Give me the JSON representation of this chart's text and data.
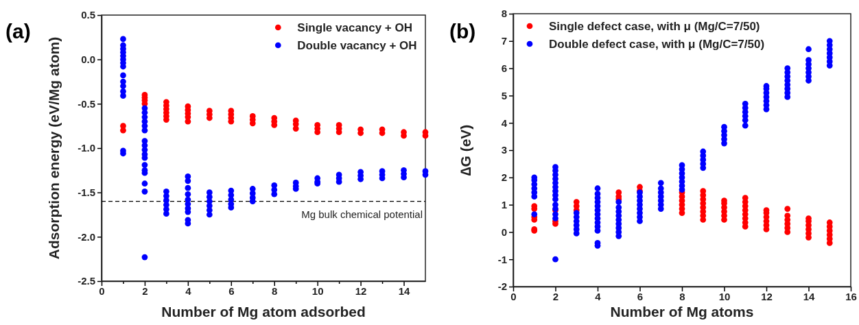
{
  "chart_data": [
    {
      "type": "scatter",
      "title": "(a)",
      "xlabel": "Number of Mg atom adsorbed",
      "ylabel": "Adsorption energy (eV/Mg atom)",
      "xlim": [
        0,
        15
      ],
      "ylim": [
        -2.5,
        0.5
      ],
      "xticks": [
        0,
        {
          "value": 1,
          "label": null
        },
        2,
        {
          "value": 3,
          "label": null
        },
        4,
        {
          "value": 5,
          "label": null
        },
        6,
        {
          "value": 7,
          "label": null
        },
        8,
        {
          "value": 9,
          "label": null
        },
        10,
        {
          "value": 11,
          "label": null
        },
        12,
        {
          "value": 13,
          "label": null
        },
        14
      ],
      "yticks": [
        {
          "value": -2.5,
          "label": "-2.5"
        },
        {
          "value": -2,
          "label": "-2.0"
        },
        {
          "value": -1.5,
          "label": "-1.5"
        },
        {
          "value": -1,
          "label": "-1.0"
        },
        {
          "value": -0.5,
          "label": "-0.5"
        },
        {
          "value": 0,
          "label": "0.0"
        },
        {
          "value": 0.5,
          "label": "0.5"
        }
      ],
      "legend": "top right",
      "marker": "circle",
      "ref_lines": [
        {
          "axis": "y",
          "value": -1.6,
          "label": "Mg bulk chemical potential",
          "color": "#000000",
          "line_style": "dashed"
        }
      ],
      "series": [
        {
          "name": "Single vacancy + OH",
          "color": "#ff0000",
          "x": [
            1,
            1,
            2,
            2,
            2,
            2,
            3,
            3,
            3,
            3,
            3,
            3,
            4,
            4,
            4,
            4,
            4,
            5,
            5,
            5,
            6,
            6,
            6,
            6,
            7,
            7,
            7,
            8,
            8,
            8,
            9,
            9,
            9,
            10,
            10,
            10,
            11,
            11,
            11,
            12,
            12,
            13,
            13,
            14,
            14,
            15,
            15
          ],
          "values": [
            -0.75,
            -0.8,
            -0.4,
            -0.43,
            -0.46,
            -0.5,
            -0.48,
            -0.52,
            -0.56,
            -0.6,
            -0.64,
            -0.68,
            -0.53,
            -0.57,
            -0.61,
            -0.65,
            -0.7,
            -0.58,
            -0.62,
            -0.66,
            -0.58,
            -0.62,
            -0.66,
            -0.7,
            -0.64,
            -0.68,
            -0.72,
            -0.66,
            -0.7,
            -0.74,
            -0.69,
            -0.73,
            -0.78,
            -0.74,
            -0.78,
            -0.82,
            -0.74,
            -0.78,
            -0.82,
            -0.79,
            -0.83,
            -0.79,
            -0.83,
            -0.82,
            -0.86,
            -0.82,
            -0.86
          ]
        },
        {
          "name": "Double vacancy + OH",
          "color": "#0000ff",
          "x": [
            1,
            1,
            1,
            1,
            1,
            1,
            1,
            1,
            1,
            1,
            1,
            1,
            1,
            1,
            1,
            2,
            2,
            2,
            2,
            2,
            2,
            2,
            2,
            2,
            2,
            2,
            2,
            2,
            2,
            2,
            2,
            2,
            3,
            3,
            3,
            3,
            3,
            3,
            4,
            4,
            4,
            4,
            4,
            4,
            4,
            4,
            4,
            4,
            5,
            5,
            5,
            5,
            5,
            5,
            6,
            6,
            6,
            6,
            6,
            7,
            7,
            7,
            7,
            8,
            8,
            8,
            9,
            9,
            9,
            10,
            10,
            10,
            11,
            11,
            11,
            12,
            12,
            12,
            13,
            13,
            13,
            14,
            14,
            14,
            15,
            15
          ],
          "values": [
            0.23,
            0.16,
            0.12,
            0.08,
            0.04,
            0,
            -0.04,
            -0.08,
            -0.18,
            -0.25,
            -0.3,
            -0.36,
            -0.41,
            -1.03,
            -1.06,
            -0.55,
            -0.6,
            -0.65,
            -0.7,
            -0.75,
            -0.8,
            -0.92,
            -0.97,
            -1.02,
            -1.07,
            -1.11,
            -1.19,
            -1.25,
            -1.28,
            -1.4,
            -1.49,
            -2.23,
            -1.49,
            -1.54,
            -1.59,
            -1.64,
            -1.69,
            -1.74,
            -1.32,
            -1.37,
            -1.45,
            -1.52,
            -1.58,
            -1.63,
            -1.68,
            -1.72,
            -1.81,
            -1.85,
            -1.5,
            -1.55,
            -1.6,
            -1.65,
            -1.7,
            -1.75,
            -1.48,
            -1.53,
            -1.58,
            -1.63,
            -1.67,
            -1.46,
            -1.51,
            -1.56,
            -1.6,
            -1.42,
            -1.47,
            -1.52,
            -1.39,
            -1.43,
            -1.46,
            -1.34,
            -1.38,
            -1.4,
            -1.3,
            -1.34,
            -1.38,
            -1.27,
            -1.31,
            -1.35,
            -1.26,
            -1.3,
            -1.34,
            -1.25,
            -1.29,
            -1.33,
            -1.26,
            -1.3
          ]
        }
      ]
    },
    {
      "type": "scatter",
      "title": "(b)",
      "xlabel": "Number of Mg atoms",
      "ylabel": "∆G (eV)",
      "xlim": [
        0,
        16
      ],
      "ylim": [
        -2,
        8
      ],
      "xticks": [
        0,
        2,
        4,
        6,
        8,
        10,
        12,
        14,
        16
      ],
      "yticks": [
        -2,
        -1,
        0,
        1,
        2,
        3,
        4,
        5,
        6,
        7,
        8
      ],
      "legend": "top left",
      "marker": "circle",
      "series": [
        {
          "name": "Single defect case, with μ (Mg/C=7/50)",
          "color": "#ff0000",
          "x": [
            1,
            1,
            1,
            1,
            1,
            1,
            2,
            2,
            2,
            3,
            3,
            3,
            5,
            5,
            5,
            6,
            6,
            8,
            8,
            8,
            8,
            8,
            8,
            9,
            9,
            9,
            9,
            9,
            9,
            9,
            9,
            10,
            10,
            10,
            10,
            10,
            10,
            11,
            11,
            11,
            11,
            11,
            11,
            11,
            11,
            12,
            12,
            12,
            12,
            12,
            12,
            13,
            13,
            13,
            13,
            13,
            13,
            14,
            14,
            14,
            14,
            14,
            14,
            15,
            15,
            15,
            15,
            15,
            15
          ],
          "values": [
            0.05,
            0.1,
            0.45,
            0.55,
            0.85,
            0.95,
            0.3,
            0.4,
            0.8,
            0.8,
            0.95,
            1.1,
            1.2,
            1.3,
            1.45,
            1.5,
            1.65,
            0.7,
            0.85,
            1,
            1.15,
            1.3,
            1.45,
            0.45,
            0.6,
            0.75,
            0.9,
            1.05,
            1.2,
            1.35,
            1.5,
            0.45,
            0.6,
            0.75,
            0.9,
            1.05,
            1.15,
            0.2,
            0.35,
            0.5,
            0.65,
            0.8,
            0.95,
            1.1,
            1.25,
            0.1,
            0.25,
            0.4,
            0.55,
            0.7,
            0.8,
            0,
            0.15,
            0.3,
            0.45,
            0.6,
            0.85,
            -0.2,
            -0.05,
            0.1,
            0.25,
            0.4,
            0.5,
            -0.4,
            -0.25,
            -0.1,
            0.05,
            0.2,
            0.35
          ]
        },
        {
          "name": "Double defect case, with μ (Mg/C=7/50)",
          "color": "#0000ff",
          "x": [
            1,
            1,
            1,
            1,
            1,
            1,
            1,
            2,
            2,
            2,
            2,
            2,
            2,
            2,
            2,
            2,
            2,
            2,
            2,
            2,
            2,
            3,
            3,
            3,
            3,
            3,
            3,
            4,
            4,
            4,
            4,
            4,
            4,
            4,
            4,
            4,
            4,
            4,
            4,
            4,
            5,
            5,
            5,
            5,
            5,
            5,
            5,
            5,
            5,
            6,
            6,
            6,
            6,
            6,
            6,
            6,
            6,
            7,
            7,
            7,
            7,
            7,
            7,
            7,
            8,
            8,
            8,
            8,
            8,
            8,
            8,
            9,
            9,
            9,
            9,
            9,
            10,
            10,
            10,
            10,
            10,
            11,
            11,
            11,
            11,
            11,
            11,
            12,
            12,
            12,
            12,
            12,
            12,
            12,
            13,
            13,
            13,
            13,
            13,
            13,
            13,
            13,
            14,
            14,
            14,
            14,
            14,
            14,
            14,
            15,
            15,
            15,
            15,
            15,
            15,
            15
          ],
          "values": [
            0.65,
            1.3,
            1.45,
            1.6,
            1.75,
            1.9,
            2,
            -1,
            0.5,
            0.65,
            0.85,
            1,
            1.2,
            1.35,
            1.5,
            1.65,
            1.8,
            1.95,
            2.1,
            2.25,
            2.38,
            -0.05,
            0.1,
            0.25,
            0.4,
            0.55,
            0.7,
            -0.5,
            -0.4,
            0.05,
            0.2,
            0.35,
            0.5,
            0.65,
            0.8,
            0.95,
            1.1,
            1.25,
            1.4,
            1.6,
            -0.15,
            0,
            0.15,
            0.3,
            0.45,
            0.6,
            0.75,
            0.9,
            1.1,
            0.4,
            0.55,
            0.7,
            0.85,
            1,
            1.15,
            1.3,
            1.45,
            0.85,
            1,
            1.15,
            1.3,
            1.45,
            1.6,
            1.8,
            1.55,
            1.7,
            1.85,
            2,
            2.15,
            2.3,
            2.45,
            2.35,
            2.5,
            2.65,
            2.8,
            2.95,
            3.25,
            3.4,
            3.55,
            3.7,
            3.85,
            3.9,
            4.1,
            4.25,
            4.4,
            4.55,
            4.7,
            4.5,
            4.65,
            4.8,
            4.95,
            5.1,
            5.25,
            5.35,
            4.95,
            5.1,
            5.25,
            5.4,
            5.55,
            5.7,
            5.85,
            6,
            5.55,
            5.7,
            5.85,
            6,
            6.15,
            6.3,
            6.7,
            6.1,
            6.25,
            6.4,
            6.55,
            6.7,
            6.85,
            7
          ]
        }
      ]
    }
  ]
}
